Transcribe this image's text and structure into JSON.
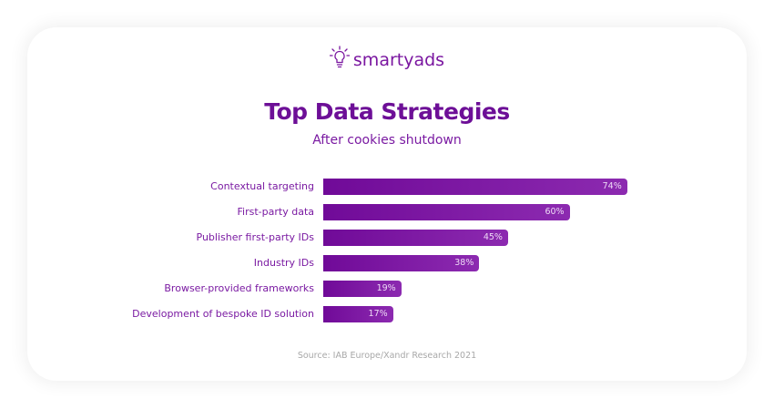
{
  "brand": {
    "name": "smartyads",
    "icon": "lightbulb-icon",
    "color": "#7a16a0"
  },
  "header": {
    "title": "Top Data Strategies",
    "subtitle": "After cookies shutdown"
  },
  "footer": {
    "source": "Source: IAB Europe/Xandr Research 2021"
  },
  "colors": {
    "bar_start": "#700a98",
    "bar_end": "#8c2ab0",
    "title": "#6d0f97",
    "label": "#7a1aa2",
    "source": "#a8a8a8"
  },
  "bars": [
    {
      "label": "Contextual targeting",
      "value": 74,
      "display": "74%"
    },
    {
      "label": "First-party data",
      "value": 60,
      "display": "60%"
    },
    {
      "label": "Publisher first-party IDs",
      "value": 45,
      "display": "45%"
    },
    {
      "label": "Industry IDs",
      "value": 38,
      "display": "38%"
    },
    {
      "label": "Browser-provided frameworks",
      "value": 19,
      "display": "19%"
    },
    {
      "label": "Development of bespoke ID solution",
      "value": 17,
      "display": "17%"
    }
  ],
  "chart_data": {
    "type": "bar",
    "orientation": "horizontal",
    "title": "Top Data Strategies",
    "subtitle": "After cookies shutdown",
    "categories": [
      "Contextual targeting",
      "First-party data",
      "Publisher first-party IDs",
      "Industry IDs",
      "Browser-provided frameworks",
      "Development of bespoke ID solution"
    ],
    "values": [
      74,
      60,
      45,
      38,
      19,
      17
    ],
    "unit": "%",
    "xlabel": "",
    "ylabel": "",
    "grid": false,
    "legend": null,
    "data_labels": true,
    "source": "Source: IAB Europe/Xandr Research 2021"
  }
}
